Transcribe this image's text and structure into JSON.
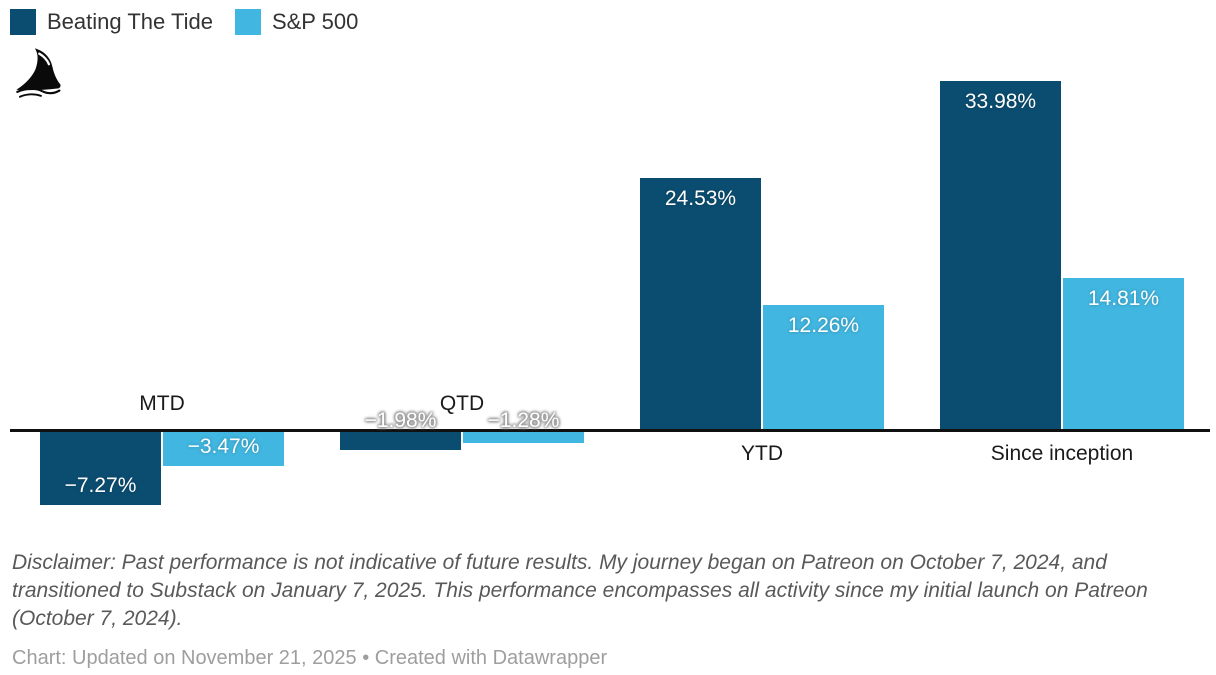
{
  "legend": {
    "items": [
      {
        "label": "Beating The Tide",
        "color": "#0b4d71"
      },
      {
        "label": "S&P 500",
        "color": "#41b6e0"
      }
    ]
  },
  "logo": {
    "icon": "shark-fin-icon"
  },
  "chart_data": {
    "type": "bar",
    "categories": [
      "MTD",
      "QTD",
      "YTD",
      "Since inception"
    ],
    "series": [
      {
        "name": "Beating The Tide",
        "color": "#0b4d71",
        "values": [
          -7.27,
          -1.98,
          24.53,
          33.98
        ]
      },
      {
        "name": "S&P 500",
        "color": "#41b6e0",
        "values": [
          -3.47,
          -1.28,
          12.26,
          14.81
        ]
      }
    ],
    "value_labels": [
      [
        "−7.27%",
        "−1.98%",
        "24.53%",
        "33.98%"
      ],
      [
        "−3.47%",
        "−1.28%",
        "12.26%",
        "14.81%"
      ]
    ],
    "title": "",
    "xlabel": "",
    "ylabel": "",
    "ylim": [
      -8,
      35
    ],
    "grid": false,
    "baseline": 0,
    "legend_position": "top-left",
    "axis_color": "#101010"
  },
  "disclaimer": "Disclaimer: Past performance is not indicative of future results. My journey began on Patreon on October 7, 2024, and transitioned to Substack on January 7, 2025. This performance encompasses all activity since my initial launch on Patreon (October 7, 2024).",
  "footer": "Chart: Updated on November 21, 2025 • Created with Datawrapper"
}
